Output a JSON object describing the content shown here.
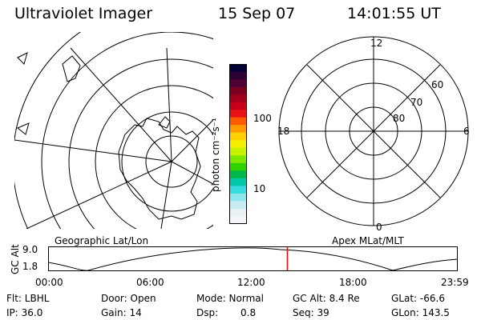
{
  "header": {
    "instrument": "Ultraviolet Imager",
    "date": "15 Sep 07",
    "time": "14:01:55 UT"
  },
  "colorbar": {
    "unit_label": "photon cm⁻²s⁻¹",
    "ticks": [
      "100",
      "10"
    ],
    "colors": [
      "#000033",
      "#2b0033",
      "#4d0033",
      "#7a0022",
      "#a1001c",
      "#c60018",
      "#e5121a",
      "#ff5a00",
      "#ff9a00",
      "#ffd000",
      "#f5f000",
      "#c7f200",
      "#7fe800",
      "#2fd300",
      "#00b84a",
      "#00c7a8",
      "#38dbe2",
      "#8de6ee",
      "#c7edf2",
      "#e8f2f5",
      "#f4f7f9"
    ]
  },
  "left_map": {
    "label": "Geographic Lat/Lon"
  },
  "right_map": {
    "label": "Apex MLat/MLT",
    "mlt_labels": {
      "top": "12",
      "left": "18",
      "right": "6",
      "bottom": "0"
    },
    "lat_labels": [
      "60",
      "70",
      "80"
    ]
  },
  "timeline": {
    "ylabel": "GC Alt",
    "ytick_top": "9.0",
    "ytick_bottom": "1.8",
    "xticks": [
      "00:00",
      "06:00",
      "12:00",
      "18:00",
      "23:59"
    ],
    "current_time_fraction": 0.584,
    "marker_color": "#ff0000"
  },
  "info": {
    "flt": "Flt: LBHL",
    "door": "Door: Open",
    "mode": "Mode: Normal",
    "gc_alt": "GC Alt: 8.4 Re",
    "glat": "GLat: -66.6",
    "ip": "IP: 36.0",
    "gain": "Gain: 14",
    "dsp_label": "Dsp:",
    "dsp_value": "0.8",
    "seq": "Seq: 39",
    "glon": "GLon: 143.5"
  }
}
